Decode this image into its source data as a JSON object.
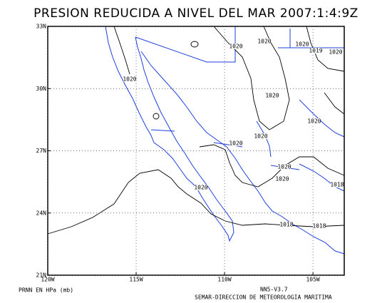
{
  "map": {
    "title": "PRESION REDUCIDA A NIVEL DEL MAR 2007:1:4:9Z",
    "lon_ticks": [
      {
        "value": -120,
        "label": "120W"
      },
      {
        "value": -115,
        "label": "115W"
      },
      {
        "value": -110,
        "label": "110W"
      },
      {
        "value": -105,
        "label": "105W"
      }
    ],
    "lat_ticks": [
      {
        "value": 33,
        "label": "33N"
      },
      {
        "value": 30,
        "label": "30N"
      },
      {
        "value": 27,
        "label": "27N"
      },
      {
        "value": 24,
        "label": "24N"
      },
      {
        "value": 21,
        "label": "21N"
      }
    ],
    "lonlim": [
      -120,
      -103.23
    ],
    "latlim": [
      21,
      33
    ],
    "isobar_labels": [
      1020,
      1020,
      1020,
      1020,
      1019,
      1020,
      1020,
      1020,
      1020,
      1020,
      1020,
      1020,
      1018,
      1020,
      1018,
      1018
    ],
    "variable_label": "PRNN EN HPa (mb)",
    "model_label": "NN5-V3.7",
    "credit": "SEMAR-DIRECCION DE METEOROLOGIA MARITIMA"
  }
}
